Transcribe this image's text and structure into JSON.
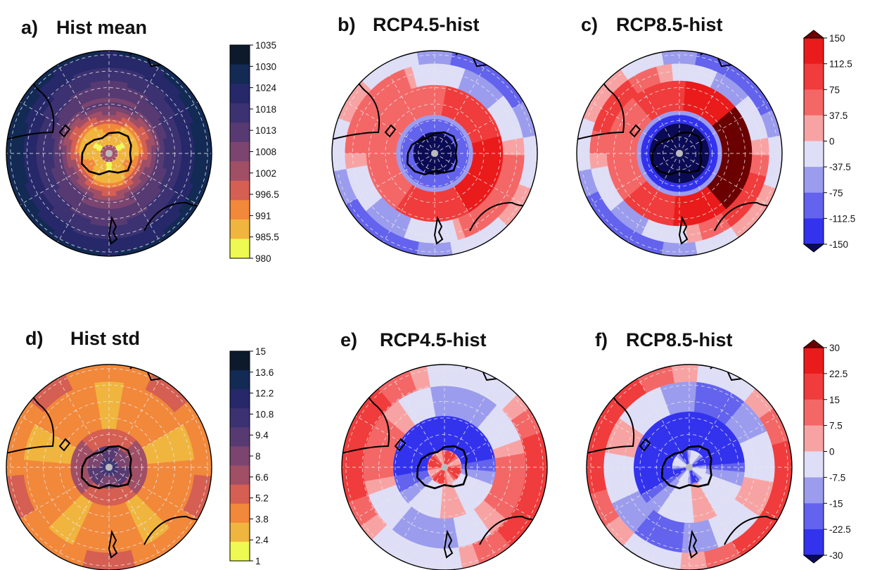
{
  "figure": {
    "panels": [
      {
        "id": "a",
        "label": "a)",
        "title": "Hist mean",
        "colormap": "sequential",
        "colorbar": "cb1",
        "pattern": "mean"
      },
      {
        "id": "b",
        "label": "b)",
        "title": "RCP4.5-hist",
        "colormap": "diverging",
        "colorbar": "cb2",
        "pattern": "diff45"
      },
      {
        "id": "c",
        "label": "c)",
        "title": "RCP8.5-hist",
        "colormap": "diverging",
        "colorbar": "cb2",
        "pattern": "diff85"
      },
      {
        "id": "d",
        "label": "d)",
        "title": "Hist std",
        "colormap": "sequential",
        "colorbar": "cb3",
        "pattern": "std"
      },
      {
        "id": "e",
        "label": "e)",
        "title": "RCP4.5-hist",
        "colormap": "diverging",
        "colorbar": "cb4",
        "pattern": "stddiff45"
      },
      {
        "id": "f",
        "label": "f)",
        "title": "RCP8.5-hist",
        "colormap": "diverging",
        "colorbar": "cb4",
        "pattern": "stddiff85"
      }
    ],
    "colorbars": {
      "cb1": {
        "ticks": [
          "1035",
          "1030",
          "1024",
          "1018",
          "1013",
          "1008",
          "1002",
          "996.5",
          "991",
          "985.5",
          "980"
        ],
        "colors": [
          "#0c1a2c",
          "#122a54",
          "#26286a",
          "#3c3272",
          "#583a72",
          "#7b4570",
          "#a14f66",
          "#d55f52",
          "#f2883a",
          "#f0b53e",
          "#eefa52"
        ],
        "extend": false
      },
      "cb2": {
        "ticks": [
          "150",
          "112.5",
          "75",
          "37.5",
          "0",
          "-37.5",
          "-75",
          "-112.5",
          "-150"
        ],
        "colors": [
          "#ea1b1b",
          "#f03c3c",
          "#f46767",
          "#f8a3a3",
          "#dedef7",
          "#9c9cee",
          "#6363ee",
          "#3333ee",
          "#1010e4"
        ],
        "extend": true,
        "extend_top": "#6b0000",
        "extend_bottom": "#0b0b55"
      },
      "cb3": {
        "ticks": [
          "15",
          "13.6",
          "12.2",
          "10.8",
          "9.4",
          "8",
          "6.6",
          "5.2",
          "3.8",
          "2.4",
          "1"
        ],
        "colors": [
          "#0c1a2c",
          "#122a54",
          "#26286a",
          "#3c3272",
          "#583a72",
          "#7b4570",
          "#a14f66",
          "#d55f52",
          "#f2883a",
          "#f0b53e",
          "#eefa52"
        ],
        "extend": false
      },
      "cb4": {
        "ticks": [
          "30",
          "22.5",
          "15",
          "7.5",
          "0",
          "-7.5",
          "-15",
          "-22.5",
          "-30"
        ],
        "colors": [
          "#ea1b1b",
          "#f03c3c",
          "#f46767",
          "#f8a3a3",
          "#dedef7",
          "#9c9cee",
          "#6363ee",
          "#3333ee",
          "#1010e4"
        ],
        "extend": true,
        "extend_top": "#6b0000",
        "extend_bottom": "#0b0b55"
      }
    },
    "map_style": {
      "coastline_color": "#000000",
      "grid_color": "#e8e8e8",
      "land_outline": "#000000"
    }
  }
}
